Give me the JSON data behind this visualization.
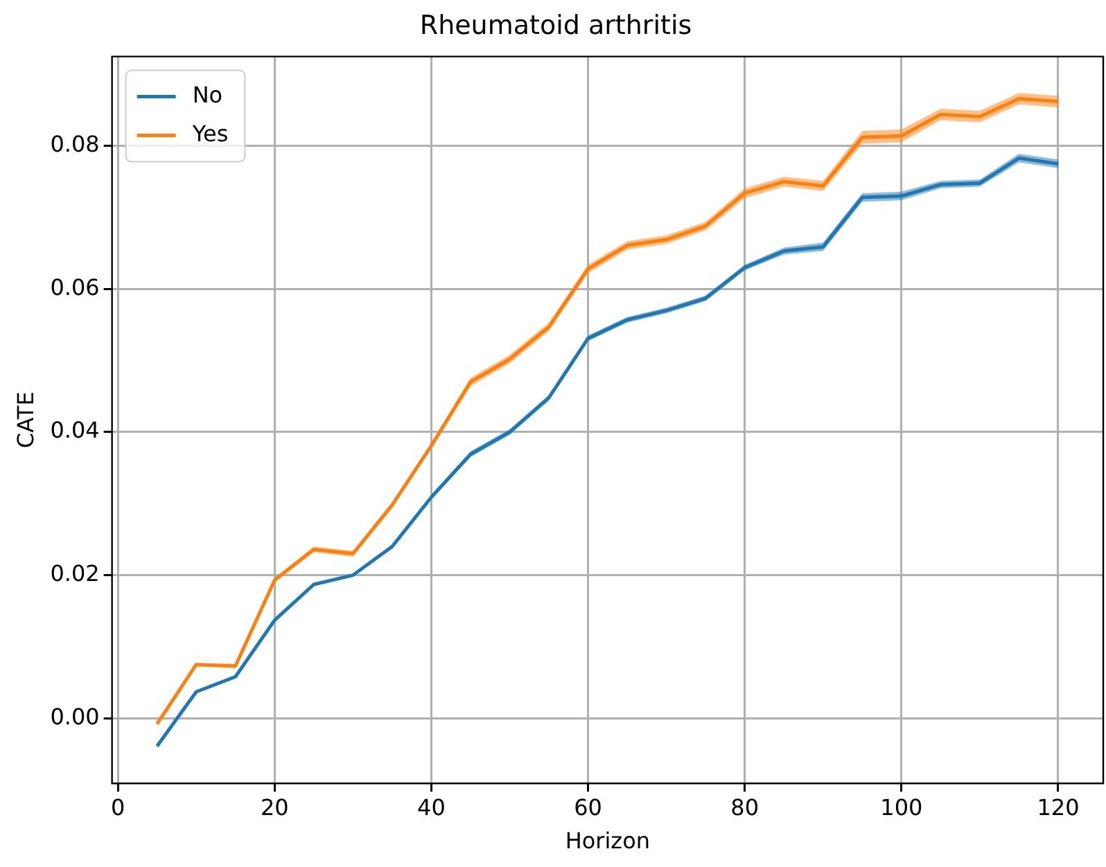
{
  "chart_data": {
    "type": "line",
    "title": "Rheumatoid arthritis",
    "xlabel": "Horizon",
    "ylabel": "CATE",
    "x": [
      5,
      10,
      15,
      20,
      25,
      30,
      35,
      40,
      45,
      50,
      55,
      60,
      65,
      70,
      75,
      80,
      85,
      90,
      95,
      100,
      105,
      110,
      115,
      120
    ],
    "series": [
      {
        "name": "No",
        "color": "#1f77b4",
        "values": [
          -0.0039,
          0.0037,
          0.0058,
          0.0137,
          0.0187,
          0.02,
          0.024,
          0.0309,
          0.0369,
          0.04,
          0.0448,
          0.0531,
          0.0557,
          0.057,
          0.0587,
          0.063,
          0.0653,
          0.0659,
          0.0728,
          0.073,
          0.0746,
          0.0748,
          0.0783,
          0.0775
        ],
        "lower": [
          -0.0041,
          0.0035,
          0.0056,
          0.0135,
          0.0185,
          0.0198,
          0.0237,
          0.0306,
          0.0365,
          0.0396,
          0.0444,
          0.0527,
          0.0553,
          0.0566,
          0.0583,
          0.0626,
          0.0648,
          0.0653,
          0.0722,
          0.0724,
          0.0741,
          0.0743,
          0.0777,
          0.0769
        ],
        "upper": [
          -0.0037,
          0.0039,
          0.006,
          0.0139,
          0.0189,
          0.0202,
          0.0243,
          0.0312,
          0.0373,
          0.0404,
          0.0452,
          0.0535,
          0.0561,
          0.0574,
          0.0591,
          0.0634,
          0.0658,
          0.0665,
          0.0734,
          0.0736,
          0.0751,
          0.0753,
          0.0789,
          0.0781
        ]
      },
      {
        "name": "Yes",
        "color": "#ff7f0e",
        "values": [
          -0.0008,
          0.0075,
          0.0073,
          0.0193,
          0.0236,
          0.023,
          0.0298,
          0.0381,
          0.047,
          0.0502,
          0.0547,
          0.0628,
          0.0661,
          0.0669,
          0.0688,
          0.0734,
          0.075,
          0.0744,
          0.0812,
          0.0814,
          0.0844,
          0.0841,
          0.0866,
          0.0862
        ],
        "lower": [
          -0.001,
          0.0073,
          0.007,
          0.019,
          0.0232,
          0.0226,
          0.0294,
          0.0377,
          0.0464,
          0.0496,
          0.0541,
          0.0622,
          0.0655,
          0.0663,
          0.0682,
          0.0727,
          0.0743,
          0.0737,
          0.0803,
          0.0805,
          0.0836,
          0.0833,
          0.0858,
          0.0854
        ],
        "upper": [
          -0.0006,
          0.0077,
          0.0076,
          0.0196,
          0.024,
          0.0234,
          0.0302,
          0.0385,
          0.0476,
          0.0508,
          0.0553,
          0.0634,
          0.0667,
          0.0675,
          0.0694,
          0.0741,
          0.0757,
          0.0751,
          0.0821,
          0.0823,
          0.0852,
          0.0849,
          0.0874,
          0.087
        ]
      }
    ],
    "xlim": [
      -0.75,
      125.75
    ],
    "xticks": [
      0,
      20,
      40,
      60,
      80,
      100,
      120
    ],
    "ylim": [
      -0.0091,
      0.0925
    ],
    "yticks": [
      {
        "value": 0,
        "label": "0.00"
      },
      {
        "value": 0.02,
        "label": "0.02"
      },
      {
        "value": 0.04,
        "label": "0.04"
      },
      {
        "value": 0.06,
        "label": "0.06"
      },
      {
        "value": 0.08,
        "label": "0.08"
      }
    ],
    "grid": true,
    "legend": "top left",
    "marker": "none",
    "line_style": "solid"
  }
}
